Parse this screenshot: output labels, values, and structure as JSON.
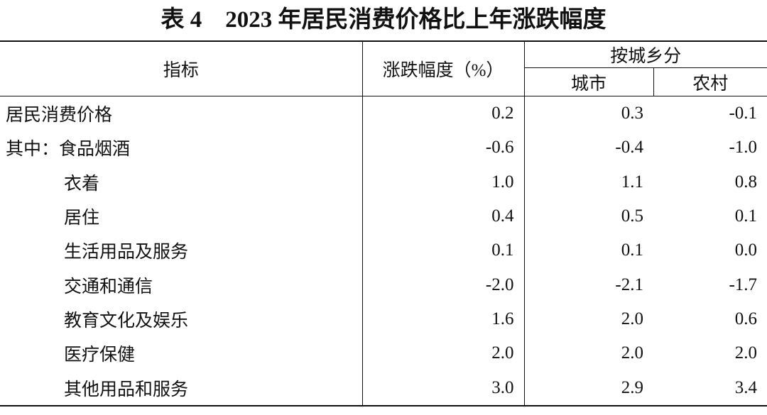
{
  "title": "表 4　2023 年居民消费价格比上年涨跌幅度",
  "table": {
    "headers": {
      "indicator": "指标",
      "change": "涨跌幅度（%）",
      "group": "按城乡分",
      "urban": "城市",
      "rural": "农村"
    },
    "rows": [
      [
        "居民消费价格",
        "0.2",
        "0.3",
        "-0.1"
      ],
      [
        "其中：食品烟酒",
        "-0.6",
        "-0.4",
        "-1.0"
      ],
      [
        "衣着",
        "1.0",
        "1.1",
        "0.8"
      ],
      [
        "居住",
        "0.4",
        "0.5",
        "0.1"
      ],
      [
        "生活用品及服务",
        "0.1",
        "0.1",
        "0.0"
      ],
      [
        "交通和通信",
        "-2.0",
        "-2.1",
        "-1.7"
      ],
      [
        "教育文化及娱乐",
        "1.6",
        "2.0",
        "0.6"
      ],
      [
        "医疗保健",
        "2.0",
        "2.0",
        "2.0"
      ],
      [
        "其他用品和服务",
        "3.0",
        "2.9",
        "3.4"
      ]
    ]
  }
}
